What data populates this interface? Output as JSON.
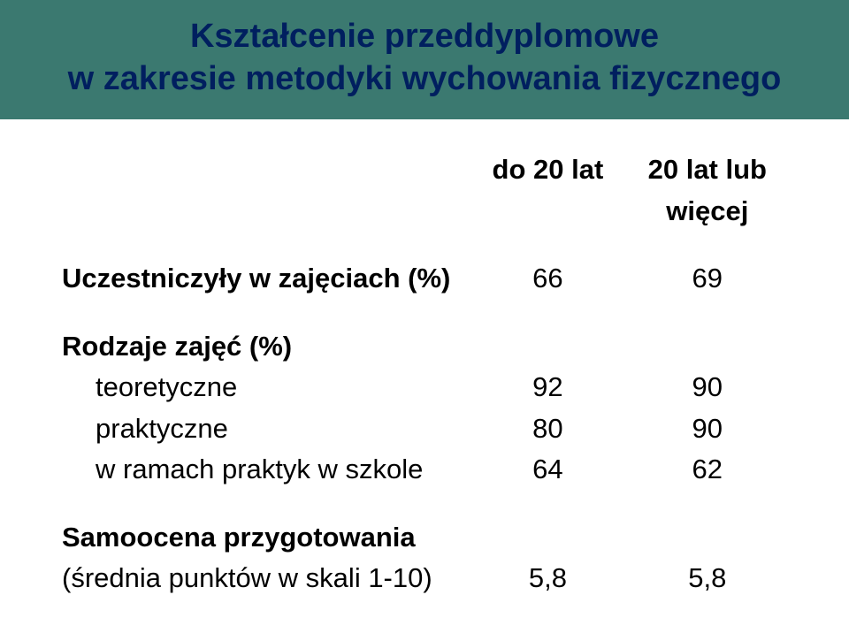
{
  "title": {
    "line1": "Kształcenie przeddyplomowe",
    "line2": "w zakresie metodyki wychowania fizycznego"
  },
  "headers": {
    "col_a": "do 20 lat",
    "col_b": "20 lat lub więcej"
  },
  "rows": {
    "participated": {
      "label": "Uczestniczyły w zajęciach (%)",
      "a": "66",
      "b": "69"
    },
    "types_header": {
      "label": "Rodzaje zajęć (%)"
    },
    "theory": {
      "label": "teoretyczne",
      "a": "92",
      "b": "90"
    },
    "practice": {
      "label": "praktyczne",
      "a": "80",
      "b": "90"
    },
    "school": {
      "label": "w ramach praktyk w szkole",
      "a": "64",
      "b": "62"
    },
    "selfeval_header": {
      "label": "Samoocena przygotowania"
    },
    "selfeval": {
      "label": "(średnia punktów w skali 1-10)",
      "a": "5,8",
      "b": "5,8"
    }
  },
  "colors": {
    "title_bg": "#3b7970",
    "title_text": "#001f5f",
    "body_text": "#000000",
    "page_bg": "#ffffff"
  }
}
